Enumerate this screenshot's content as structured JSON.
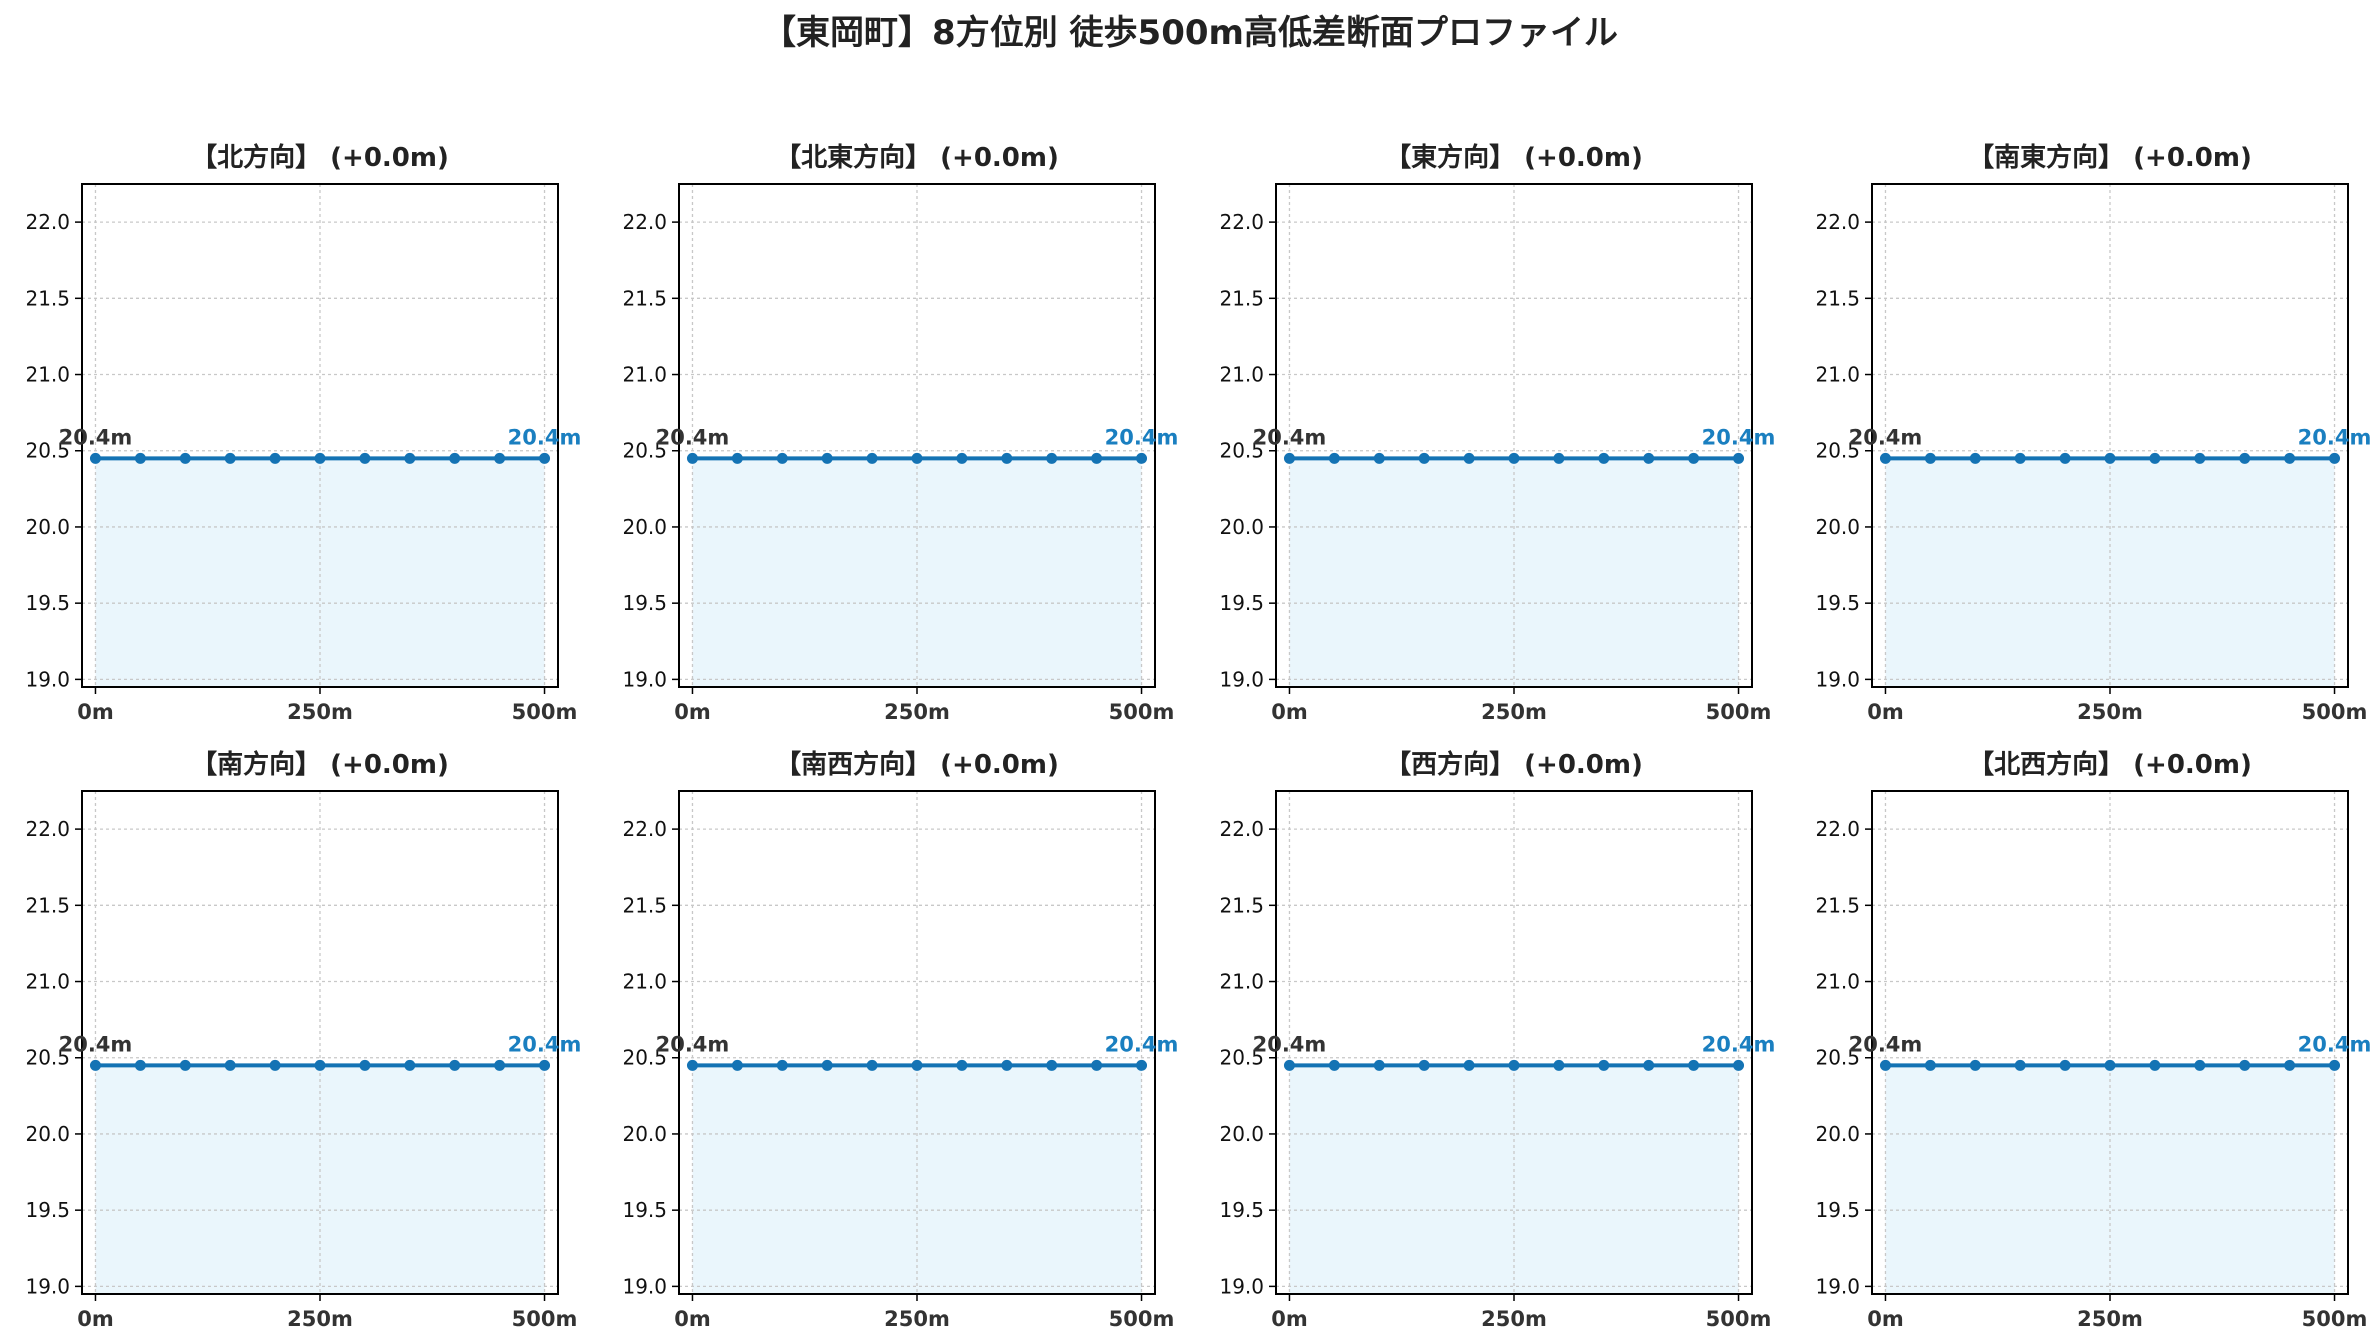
{
  "figure": {
    "title": "【東岡町】8方位別 徒歩500m高低差断面プロファイル"
  },
  "colors": {
    "line": "#1473b4",
    "fill": "#eaf6fc",
    "end_label": "#1a7fc0",
    "start_label": "#333333",
    "grid": "#c8c8c8"
  },
  "chart_data": [
    {
      "type": "line",
      "title": "【北方向】 (+0.0m)",
      "x": [
        0,
        50,
        100,
        150,
        200,
        250,
        300,
        350,
        400,
        450,
        500
      ],
      "y": [
        20.45,
        20.45,
        20.45,
        20.45,
        20.45,
        20.45,
        20.45,
        20.45,
        20.45,
        20.45,
        20.45
      ],
      "start_label": "20.4m",
      "end_label": "20.4m",
      "xticks": [
        "0m",
        "250m",
        "500m"
      ],
      "xtick_values": [
        0,
        250,
        500
      ],
      "yticks": [
        "19.0",
        "19.5",
        "20.0",
        "20.5",
        "21.0",
        "21.5",
        "22.0"
      ],
      "ylim": [
        18.95,
        22.25
      ],
      "xlim": [
        -15,
        515
      ],
      "grid": true,
      "fill": true
    },
    {
      "type": "line",
      "title": "【北東方向】 (+0.0m)",
      "x": [
        0,
        50,
        100,
        150,
        200,
        250,
        300,
        350,
        400,
        450,
        500
      ],
      "y": [
        20.45,
        20.45,
        20.45,
        20.45,
        20.45,
        20.45,
        20.45,
        20.45,
        20.45,
        20.45,
        20.45
      ],
      "start_label": "20.4m",
      "end_label": "20.4m",
      "xticks": [
        "0m",
        "250m",
        "500m"
      ],
      "xtick_values": [
        0,
        250,
        500
      ],
      "yticks": [
        "19.0",
        "19.5",
        "20.0",
        "20.5",
        "21.0",
        "21.5",
        "22.0"
      ],
      "ylim": [
        18.95,
        22.25
      ],
      "xlim": [
        -15,
        515
      ],
      "grid": true,
      "fill": true
    },
    {
      "type": "line",
      "title": "【東方向】 (+0.0m)",
      "x": [
        0,
        50,
        100,
        150,
        200,
        250,
        300,
        350,
        400,
        450,
        500
      ],
      "y": [
        20.45,
        20.45,
        20.45,
        20.45,
        20.45,
        20.45,
        20.45,
        20.45,
        20.45,
        20.45,
        20.45
      ],
      "start_label": "20.4m",
      "end_label": "20.4m",
      "xticks": [
        "0m",
        "250m",
        "500m"
      ],
      "xtick_values": [
        0,
        250,
        500
      ],
      "yticks": [
        "19.0",
        "19.5",
        "20.0",
        "20.5",
        "21.0",
        "21.5",
        "22.0"
      ],
      "ylim": [
        18.95,
        22.25
      ],
      "xlim": [
        -15,
        515
      ],
      "grid": true,
      "fill": true
    },
    {
      "type": "line",
      "title": "【南東方向】 (+0.0m)",
      "x": [
        0,
        50,
        100,
        150,
        200,
        250,
        300,
        350,
        400,
        450,
        500
      ],
      "y": [
        20.45,
        20.45,
        20.45,
        20.45,
        20.45,
        20.45,
        20.45,
        20.45,
        20.45,
        20.45,
        20.45
      ],
      "start_label": "20.4m",
      "end_label": "20.4m",
      "xticks": [
        "0m",
        "250m",
        "500m"
      ],
      "xtick_values": [
        0,
        250,
        500
      ],
      "yticks": [
        "19.0",
        "19.5",
        "20.0",
        "20.5",
        "21.0",
        "21.5",
        "22.0"
      ],
      "ylim": [
        18.95,
        22.25
      ],
      "xlim": [
        -15,
        515
      ],
      "grid": true,
      "fill": true
    },
    {
      "type": "line",
      "title": "【南方向】 (+0.0m)",
      "x": [
        0,
        50,
        100,
        150,
        200,
        250,
        300,
        350,
        400,
        450,
        500
      ],
      "y": [
        20.45,
        20.45,
        20.45,
        20.45,
        20.45,
        20.45,
        20.45,
        20.45,
        20.45,
        20.45,
        20.45
      ],
      "start_label": "20.4m",
      "end_label": "20.4m",
      "xticks": [
        "0m",
        "250m",
        "500m"
      ],
      "xtick_values": [
        0,
        250,
        500
      ],
      "yticks": [
        "19.0",
        "19.5",
        "20.0",
        "20.5",
        "21.0",
        "21.5",
        "22.0"
      ],
      "ylim": [
        18.95,
        22.25
      ],
      "xlim": [
        -15,
        515
      ],
      "grid": true,
      "fill": true
    },
    {
      "type": "line",
      "title": "【南西方向】 (+0.0m)",
      "x": [
        0,
        50,
        100,
        150,
        200,
        250,
        300,
        350,
        400,
        450,
        500
      ],
      "y": [
        20.45,
        20.45,
        20.45,
        20.45,
        20.45,
        20.45,
        20.45,
        20.45,
        20.45,
        20.45,
        20.45
      ],
      "start_label": "20.4m",
      "end_label": "20.4m",
      "xticks": [
        "0m",
        "250m",
        "500m"
      ],
      "xtick_values": [
        0,
        250,
        500
      ],
      "yticks": [
        "19.0",
        "19.5",
        "20.0",
        "20.5",
        "21.0",
        "21.5",
        "22.0"
      ],
      "ylim": [
        18.95,
        22.25
      ],
      "xlim": [
        -15,
        515
      ],
      "grid": true,
      "fill": true
    },
    {
      "type": "line",
      "title": "【西方向】 (+0.0m)",
      "x": [
        0,
        50,
        100,
        150,
        200,
        250,
        300,
        350,
        400,
        450,
        500
      ],
      "y": [
        20.45,
        20.45,
        20.45,
        20.45,
        20.45,
        20.45,
        20.45,
        20.45,
        20.45,
        20.45,
        20.45
      ],
      "start_label": "20.4m",
      "end_label": "20.4m",
      "xticks": [
        "0m",
        "250m",
        "500m"
      ],
      "xtick_values": [
        0,
        250,
        500
      ],
      "yticks": [
        "19.0",
        "19.5",
        "20.0",
        "20.5",
        "21.0",
        "21.5",
        "22.0"
      ],
      "ylim": [
        18.95,
        22.25
      ],
      "xlim": [
        -15,
        515
      ],
      "grid": true,
      "fill": true
    },
    {
      "type": "line",
      "title": "【北西方向】 (+0.0m)",
      "x": [
        0,
        50,
        100,
        150,
        200,
        250,
        300,
        350,
        400,
        450,
        500
      ],
      "y": [
        20.45,
        20.45,
        20.45,
        20.45,
        20.45,
        20.45,
        20.45,
        20.45,
        20.45,
        20.45,
        20.45
      ],
      "start_label": "20.4m",
      "end_label": "20.4m",
      "xticks": [
        "0m",
        "250m",
        "500m"
      ],
      "xtick_values": [
        0,
        250,
        500
      ],
      "yticks": [
        "19.0",
        "19.5",
        "20.0",
        "20.5",
        "21.0",
        "21.5",
        "22.0"
      ],
      "ylim": [
        18.95,
        22.25
      ],
      "xlim": [
        -15,
        515
      ],
      "grid": true,
      "fill": true
    }
  ]
}
